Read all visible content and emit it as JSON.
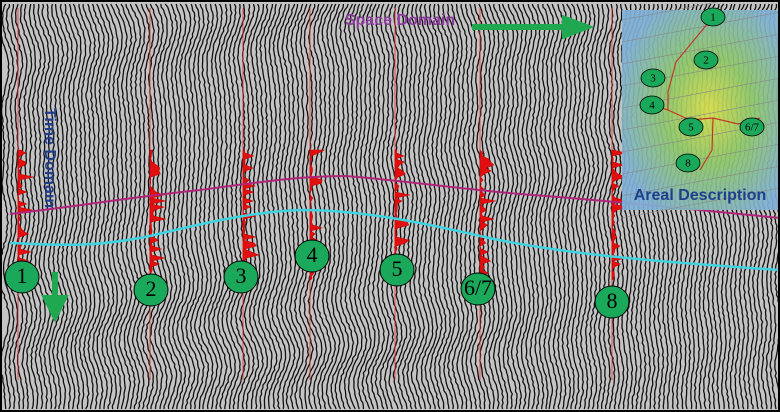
{
  "annotations": {
    "space_domain": "Space Domain",
    "time_domain": "Time Domain",
    "areal_description": "Areal Description"
  },
  "wells": [
    "1",
    "2",
    "3",
    "4",
    "5",
    "6/7",
    "8"
  ],
  "map_wells": [
    "1",
    "2",
    "3",
    "4",
    "5",
    "6/7",
    "8"
  ]
}
